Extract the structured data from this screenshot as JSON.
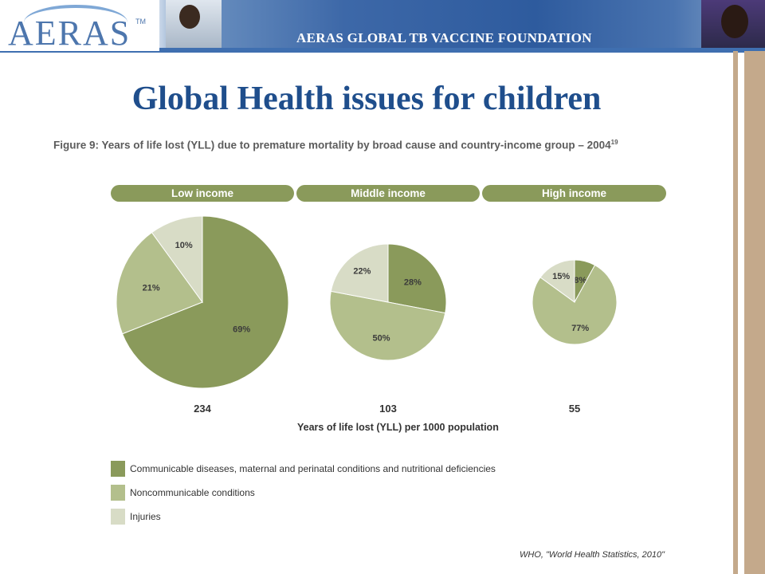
{
  "header": {
    "logo": "AERAS",
    "logo_tm": "TM",
    "organization": "AERAS GLOBAL TB VACCINE FOUNDATION"
  },
  "slide_title": "Global Health issues for children",
  "source": "WHO, \"World Health Statistics, 2010\"",
  "chart_data": {
    "type": "pie",
    "title": "Figure 9: Years of life lost (YLL) due to premature mortality by broad cause and country-income group – 2004",
    "title_superscript": "19",
    "xlabel": "Years of life lost (YLL) per 1000 population",
    "legend_position": "bottom-left",
    "colors": {
      "communicable": "#8a9a5b",
      "noncommunicable": "#b3bf8c",
      "injuries": "#d8dcc6"
    },
    "legend": [
      {
        "key": "communicable",
        "label": "Communicable diseases, maternal and perinatal conditions and nutritional deficiencies"
      },
      {
        "key": "noncommunicable",
        "label": "Noncommunicable conditions"
      },
      {
        "key": "injuries",
        "label": "Injuries"
      }
    ],
    "groups": [
      {
        "name": "Low income",
        "total": 234,
        "slices": [
          {
            "key": "communicable",
            "value": 69,
            "label": "69%"
          },
          {
            "key": "noncommunicable",
            "value": 21,
            "label": "21%"
          },
          {
            "key": "injuries",
            "value": 10,
            "label": "10%"
          }
        ]
      },
      {
        "name": "Middle income",
        "total": 103,
        "slices": [
          {
            "key": "communicable",
            "value": 28,
            "label": "28%"
          },
          {
            "key": "noncommunicable",
            "value": 50,
            "label": "50%"
          },
          {
            "key": "injuries",
            "value": 22,
            "label": "22%"
          }
        ]
      },
      {
        "name": "High income",
        "total": 55,
        "slices": [
          {
            "key": "communicable",
            "value": 8,
            "label": "8%"
          },
          {
            "key": "noncommunicable",
            "value": 77,
            "label": "77%"
          },
          {
            "key": "injuries",
            "value": 15,
            "label": "15%"
          }
        ]
      }
    ]
  }
}
